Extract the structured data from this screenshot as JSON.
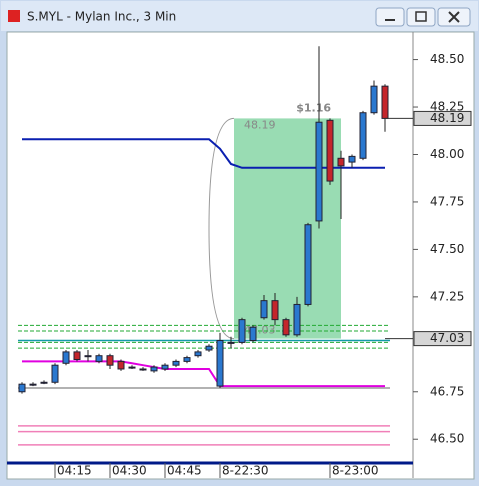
{
  "chart_data": {
    "type": "candlestick",
    "title": "S.MYL - Mylan Inc., 3 Min",
    "categories": [
      null,
      null,
      null,
      "04:15",
      null,
      null,
      null,
      null,
      "04:30",
      null,
      null,
      null,
      null,
      "04:45",
      null,
      null,
      null,
      null,
      "8-22:30",
      null,
      null,
      null,
      null,
      null,
      null,
      null,
      null,
      null,
      "8-23:00",
      null,
      null,
      null,
      null,
      null
    ],
    "open": [
      46.75,
      46.79,
      46.8,
      46.8,
      46.9,
      46.96,
      46.94,
      46.91,
      46.94,
      46.91,
      46.88,
      46.87,
      46.86,
      46.87,
      46.89,
      46.91,
      46.94,
      46.97,
      46.78,
      47.01,
      47.01,
      47.02,
      47.14,
      47.23,
      47.13,
      47.05,
      47.21,
      47.65,
      48.18,
      47.98,
      47.96,
      47.98,
      48.22,
      48.36
    ],
    "high": [
      46.8,
      46.8,
      46.81,
      46.9,
      46.97,
      46.97,
      46.97,
      46.95,
      46.95,
      46.92,
      46.89,
      46.88,
      46.89,
      46.9,
      46.92,
      46.94,
      46.97,
      47.0,
      47.06,
      47.04,
      47.14,
      47.1,
      47.26,
      47.27,
      47.14,
      47.25,
      47.64,
      48.57,
      48.19,
      48.02,
      48.0,
      48.23,
      48.39,
      48.37
    ],
    "low": [
      46.74,
      46.78,
      46.79,
      46.79,
      46.89,
      46.91,
      46.91,
      46.9,
      46.87,
      46.86,
      46.87,
      46.86,
      46.85,
      46.86,
      46.88,
      46.9,
      46.93,
      46.96,
      46.77,
      46.98,
      47.0,
      47.01,
      47.13,
      47.1,
      47.04,
      47.04,
      47.2,
      47.61,
      47.84,
      47.66,
      47.93,
      47.97,
      48.21,
      48.12
    ],
    "close": [
      46.79,
      46.79,
      46.8,
      46.89,
      46.96,
      46.92,
      46.94,
      46.94,
      46.89,
      46.87,
      46.88,
      46.87,
      46.88,
      46.89,
      46.91,
      46.93,
      46.96,
      46.99,
      47.02,
      47.01,
      47.13,
      47.09,
      47.23,
      47.13,
      47.05,
      47.21,
      47.63,
      48.17,
      47.86,
      47.94,
      47.99,
      48.22,
      48.36,
      48.19
    ],
    "up_color": "#2a78cf",
    "down_color": "#c4262c",
    "overlays": [
      {
        "color": "#0a1fb0",
        "values": [
          48.08,
          48.08,
          48.08,
          48.08,
          48.08,
          48.08,
          48.08,
          48.08,
          48.08,
          48.08,
          48.08,
          48.08,
          48.08,
          48.08,
          48.08,
          48.08,
          48.08,
          48.08,
          48.03,
          47.95,
          47.93,
          47.93,
          47.93,
          47.93,
          47.93,
          47.93,
          47.93,
          47.93,
          47.93,
          47.93,
          47.93,
          47.93,
          47.93,
          47.93
        ]
      },
      {
        "color": "#e000e0",
        "values": [
          46.91,
          46.91,
          46.91,
          46.91,
          46.91,
          46.91,
          46.91,
          46.91,
          46.91,
          46.91,
          46.9,
          46.89,
          46.88,
          46.87,
          46.87,
          46.87,
          46.87,
          46.87,
          46.78,
          46.78,
          46.78,
          46.78,
          46.78,
          46.78,
          46.78,
          46.78,
          46.78,
          46.78,
          46.78,
          46.78,
          46.78,
          46.78,
          46.78,
          46.78
        ]
      }
    ],
    "levels": [
      {
        "value": 47.02,
        "color": "#159aa8",
        "dash": false
      },
      {
        "value": 46.77,
        "color": "#999999",
        "dash": false
      },
      {
        "value": 47.1,
        "color": "#22aa33",
        "dash": true
      },
      {
        "value": 47.07,
        "color": "#22aa33",
        "dash": true
      },
      {
        "value": 47.01,
        "color": "#22aa33",
        "dash": true
      },
      {
        "value": 46.98,
        "color": "#22aa33",
        "dash": true
      },
      {
        "value": 46.57,
        "color": "#f07fb8",
        "dash": false
      },
      {
        "value": 46.54,
        "color": "#f07fb8",
        "dash": false
      },
      {
        "value": 46.47,
        "color": "#f07fb8",
        "dash": false
      }
    ],
    "trade_box": {
      "high": 48.19,
      "low": 47.03,
      "gain": {
        "value": 1.16,
        "label": "$1.16"
      },
      "color": "#7fd3a0"
    },
    "price_markers": [
      48.19,
      47.03
    ],
    "ylim": [
      46.38,
      48.64
    ],
    "yticks": [
      {
        "value": 48.5,
        "label": "48.50"
      },
      {
        "value": 48.25,
        "label": "48.25"
      },
      {
        "value": 48.0,
        "label": "48.00"
      },
      {
        "value": 47.75,
        "label": "47.75"
      },
      {
        "value": 47.5,
        "label": "47.50"
      },
      {
        "value": 47.25,
        "label": "47.25"
      },
      {
        "value": 46.75,
        "label": "46.75"
      },
      {
        "value": 46.5,
        "label": "46.50"
      }
    ]
  }
}
